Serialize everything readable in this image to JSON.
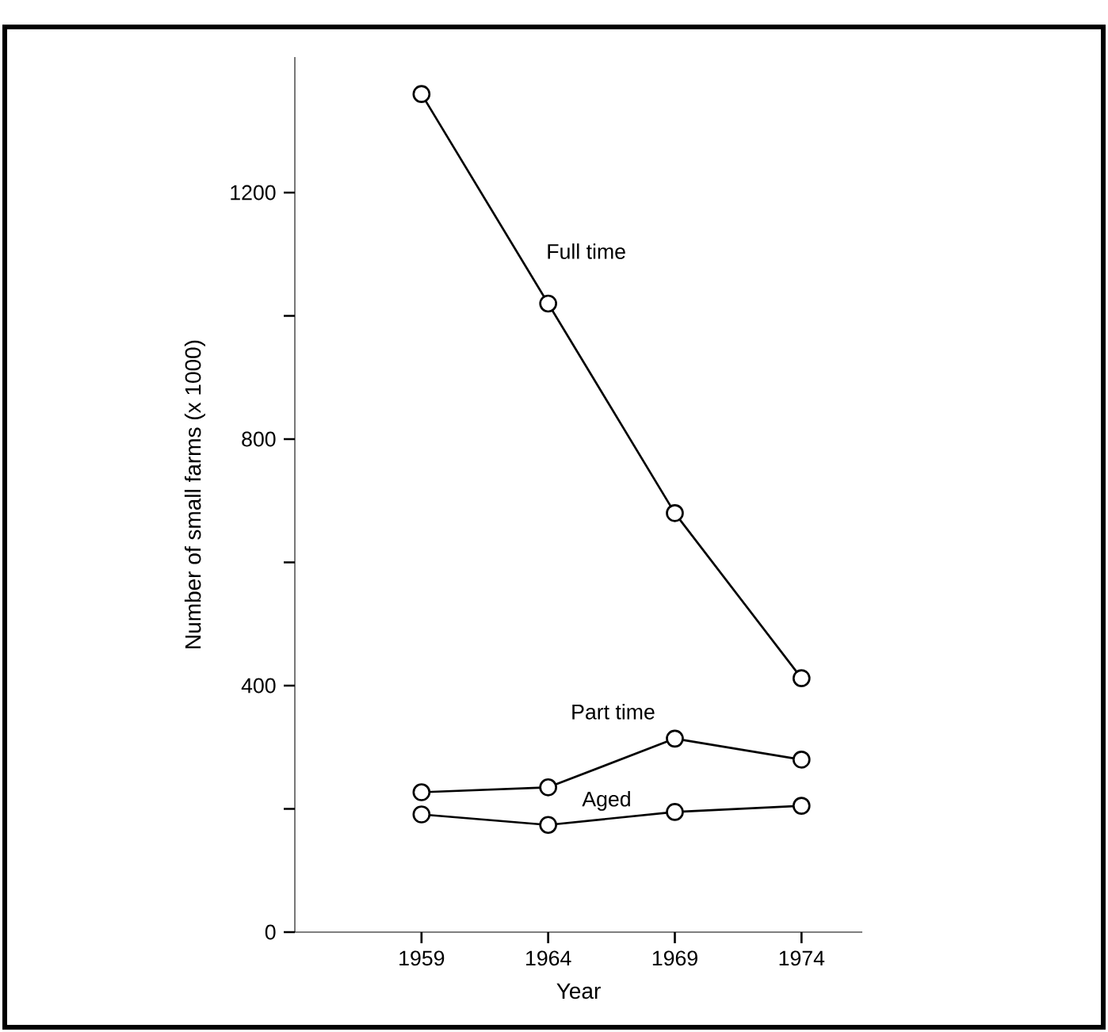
{
  "chart_data": {
    "type": "line",
    "xlabel": "Year",
    "ylabel": "Number of small farms (x 1000)",
    "x": [
      1959,
      1964,
      1969,
      1974
    ],
    "series": [
      {
        "name": "Full time",
        "color": "#000000",
        "values": [
          1360,
          1020,
          680,
          412
        ]
      },
      {
        "name": "Part time",
        "color": "#000000",
        "values": [
          227,
          235,
          314,
          280
        ]
      },
      {
        "name": "Aged",
        "color": "#000000",
        "values": [
          191,
          174,
          195,
          205
        ]
      }
    ],
    "xlim": [
      1954,
      1976.4
    ],
    "xticks": [
      1959,
      1964,
      1969,
      1974
    ],
    "ylim": [
      0,
      1420
    ],
    "yticks": [
      0,
      {
        "value": 200,
        "label": null
      },
      400,
      {
        "value": 600,
        "label": null
      },
      800,
      {
        "value": 1000,
        "label": null
      },
      1200
    ],
    "marker": "circle",
    "line_style": "solid",
    "grid": false
  }
}
